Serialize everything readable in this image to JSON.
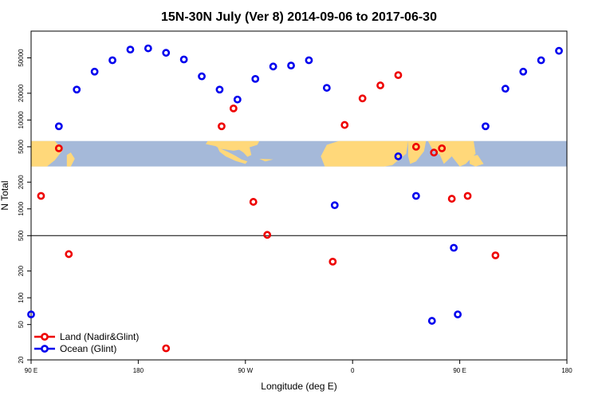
{
  "chart_data": {
    "type": "scatter",
    "title": "15N-30N July (Ver 8)   2014-09-06 to 2017-06-30",
    "xlabel": "Longitude (deg E)",
    "ylabel": "N Total",
    "xscale": "linear",
    "yscale": "log",
    "xlim": [
      -90,
      180
    ],
    "ylim": [
      20,
      100000
    ],
    "x_ticks": [
      {
        "value": -90,
        "label": "90 E"
      },
      {
        "value": -36,
        "label": "180"
      },
      {
        "value": 18,
        "label": "90 W"
      },
      {
        "value": 72,
        "label": "0"
      },
      {
        "value": 126,
        "label": "90 E"
      },
      {
        "value": 180,
        "label": "180"
      }
    ],
    "y_ticks": [
      {
        "value": 20,
        "label": "20"
      },
      {
        "value": 50,
        "label": "50"
      },
      {
        "value": 100,
        "label": "100"
      },
      {
        "value": 200,
        "label": "200"
      },
      {
        "value": 500,
        "label": "500"
      },
      {
        "value": 1000,
        "label": "1000"
      },
      {
        "value": 2000,
        "label": "2000"
      },
      {
        "value": 5000,
        "label": "5000"
      },
      {
        "value": 10000,
        "label": "10000"
      },
      {
        "value": 20000,
        "label": "20000"
      },
      {
        "value": 50000,
        "label": "50000"
      }
    ],
    "reference_line": 500,
    "map_band": {
      "from": 3000,
      "to": 5800,
      "ocean_color": "#a5b9d9",
      "land_color": "#ffd87a"
    },
    "legend_position": "bottom-left",
    "series": [
      {
        "name": "Land (Nadir&Glint)",
        "color": "#ee0000",
        "points": [
          {
            "x": -76,
            "y": 4800
          },
          {
            "x": -85,
            "y": 1400
          },
          {
            "x": -71,
            "y": 310
          },
          {
            "x": -22,
            "y": 27
          },
          {
            "x": 6,
            "y": 8500
          },
          {
            "x": 12,
            "y": 13500
          },
          {
            "x": 22,
            "y": 1200
          },
          {
            "x": 29,
            "y": 510
          },
          {
            "x": 62,
            "y": 255
          },
          {
            "x": 68,
            "y": 8800
          },
          {
            "x": 77,
            "y": 17500
          },
          {
            "x": 86,
            "y": 24500
          },
          {
            "x": 95,
            "y": 32000
          },
          {
            "x": 104,
            "y": 5000
          },
          {
            "x": 113,
            "y": 4300
          },
          {
            "x": 122,
            "y": 1300
          },
          {
            "x": 130,
            "y": 1400
          },
          {
            "x": 117,
            "y": 4800
          },
          {
            "x": 144,
            "y": 300
          }
        ]
      },
      {
        "name": "Ocean (Glint)",
        "color": "#0000ee",
        "points": [
          {
            "x": -90,
            "y": 65
          },
          {
            "x": -76,
            "y": 8500
          },
          {
            "x": -67,
            "y": 22000
          },
          {
            "x": -58,
            "y": 35000
          },
          {
            "x": -49,
            "y": 47000
          },
          {
            "x": -40,
            "y": 62000
          },
          {
            "x": -31,
            "y": 64000
          },
          {
            "x": -22,
            "y": 57000
          },
          {
            "x": -13,
            "y": 48000
          },
          {
            "x": -4,
            "y": 31000
          },
          {
            "x": 5,
            "y": 22000
          },
          {
            "x": 14,
            "y": 17000
          },
          {
            "x": 23,
            "y": 29000
          },
          {
            "x": 32,
            "y": 40000
          },
          {
            "x": 41,
            "y": 41000
          },
          {
            "x": 50,
            "y": 47000
          },
          {
            "x": 59,
            "y": 23000
          },
          {
            "x": 63,
            "y": 1100
          },
          {
            "x": 95,
            "y": 3900
          },
          {
            "x": 104,
            "y": 1400
          },
          {
            "x": 112,
            "y": 55
          },
          {
            "x": 123,
            "y": 365
          },
          {
            "x": 125,
            "y": 65
          },
          {
            "x": 139,
            "y": 8500
          },
          {
            "x": 149,
            "y": 22500
          },
          {
            "x": 158,
            "y": 35000
          },
          {
            "x": 167,
            "y": 47000
          },
          {
            "x": 176,
            "y": 60000
          }
        ]
      }
    ]
  }
}
